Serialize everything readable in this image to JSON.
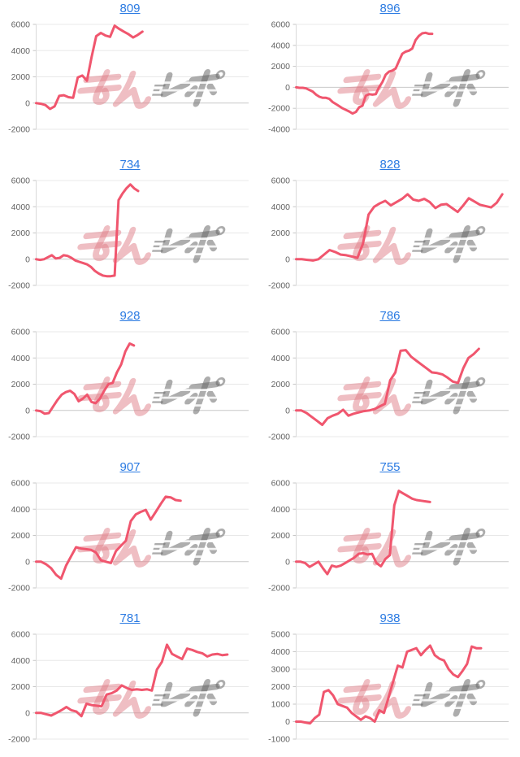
{
  "style": {
    "background": "#ffffff",
    "line_color": "#f0566e",
    "link_color": "#2a7ae2",
    "grid_color": "#e8e8e8",
    "zero_line_color": "#c9c9c9",
    "axis_color": "#dadada",
    "tick_color": "#c6c6c6",
    "tick_label_color": "#636363"
  },
  "watermark": {
    "text": "みんレポ",
    "pink_text": "みん",
    "gray_text": "レポ",
    "pink_color": "rgba(224,125,135,0.5)",
    "gray_color": "rgba(105,105,105,0.55)"
  },
  "chart_data": [
    {
      "type": "line",
      "title": "809",
      "ylim": [
        -2000,
        6000
      ],
      "yticks": [
        6000,
        4000,
        2000,
        0,
        -2000
      ],
      "coverage": 0.5,
      "values": [
        0,
        -50,
        -150,
        -450,
        -250,
        550,
        600,
        450,
        400,
        1950,
        2100,
        1700,
        3500,
        5100,
        5350,
        5150,
        5050,
        5900,
        5650,
        5450,
        5250,
        5000,
        5200,
        5450
      ]
    },
    {
      "type": "line",
      "title": "896",
      "ylim": [
        -4000,
        6000
      ],
      "yticks": [
        6000,
        4000,
        2000,
        0,
        -2000,
        -4000
      ],
      "coverage": 0.64,
      "values": [
        0,
        -50,
        -50,
        -100,
        -250,
        -400,
        -700,
        -900,
        -1000,
        -1000,
        -1100,
        -1400,
        -1600,
        -1800,
        -2000,
        -2150,
        -2300,
        -2500,
        -2350,
        -1900,
        -1750,
        -800,
        -650,
        -700,
        -650,
        0,
        500,
        1200,
        1500,
        1600,
        1800,
        2500,
        3200,
        3400,
        3500,
        3700,
        4500,
        4900,
        5150,
        5200,
        5100,
        5100
      ]
    },
    {
      "type": "line",
      "title": "734",
      "ylim": [
        -2000,
        6000
      ],
      "yticks": [
        6000,
        4000,
        2000,
        0,
        -2000
      ],
      "coverage": 0.48,
      "values": [
        0,
        -50,
        0,
        150,
        300,
        50,
        100,
        300,
        250,
        100,
        -100,
        -200,
        -300,
        -400,
        -600,
        -900,
        -1100,
        -1250,
        -1300,
        -1300,
        -1250,
        4500,
        5000,
        5400,
        5700,
        5400,
        5200
      ]
    },
    {
      "type": "line",
      "title": "828",
      "ylim": [
        -2000,
        6000
      ],
      "yticks": [
        6000,
        4000,
        2000,
        0,
        -2000
      ],
      "coverage": 0.97,
      "values": [
        0,
        0,
        -50,
        -100,
        0,
        350,
        700,
        550,
        350,
        300,
        200,
        100,
        1200,
        3400,
        4000,
        4250,
        4450,
        4100,
        4350,
        4600,
        4950,
        4550,
        4450,
        4600,
        4350,
        3900,
        4150,
        4200,
        3900,
        3600,
        4100,
        4650,
        4400,
        4150,
        4050,
        3950,
        4300,
        4950
      ]
    },
    {
      "type": "line",
      "title": "928",
      "ylim": [
        -2000,
        6000
      ],
      "yticks": [
        6000,
        4000,
        2000,
        0,
        -2000
      ],
      "coverage": 0.46,
      "values": [
        0,
        -50,
        -250,
        -200,
        300,
        800,
        1200,
        1400,
        1500,
        1250,
        700,
        900,
        1200,
        650,
        550,
        900,
        1500,
        2000,
        2100,
        2900,
        3500,
        4500,
        5100,
        4950
      ]
    },
    {
      "type": "line",
      "title": "786",
      "ylim": [
        -2000,
        6000
      ],
      "yticks": [
        6000,
        4000,
        2000,
        0,
        -2000
      ],
      "coverage": 0.86,
      "values": [
        0,
        0,
        -200,
        -500,
        -800,
        -1100,
        -600,
        -400,
        -250,
        50,
        -400,
        -250,
        -150,
        -50,
        0,
        100,
        300,
        500,
        2300,
        2900,
        4550,
        4600,
        4100,
        3800,
        3500,
        3200,
        2900,
        2850,
        2750,
        2500,
        2200,
        2100,
        3200,
        4000,
        4300,
        4700
      ]
    },
    {
      "type": "line",
      "title": "907",
      "ylim": [
        -2000,
        6000
      ],
      "yticks": [
        6000,
        4000,
        2000,
        0,
        -2000
      ],
      "coverage": 0.68,
      "values": [
        0,
        0,
        -200,
        -500,
        -1000,
        -1300,
        -300,
        400,
        1100,
        1000,
        950,
        900,
        700,
        100,
        0,
        -100,
        800,
        1200,
        1600,
        3100,
        3600,
        3800,
        3950,
        3200,
        3800,
        4400,
        4950,
        4900,
        4700,
        4650
      ]
    },
    {
      "type": "line",
      "title": "755",
      "ylim": [
        -2000,
        6000
      ],
      "yticks": [
        6000,
        4000,
        2000,
        0,
        -2000
      ],
      "coverage": 0.63,
      "values": [
        0,
        0,
        -100,
        -400,
        -200,
        0,
        -500,
        -950,
        -300,
        -400,
        -300,
        -100,
        100,
        300,
        600,
        650,
        550,
        600,
        -100,
        -350,
        200,
        500,
        4300,
        5400,
        5200,
        5000,
        4800,
        4700,
        4650,
        4600,
        4550
      ]
    },
    {
      "type": "line",
      "title": "781",
      "ylim": [
        -2000,
        6000
      ],
      "yticks": [
        6000,
        4000,
        2000,
        0,
        -2000
      ],
      "coverage": 0.9,
      "values": [
        0,
        0,
        -100,
        -200,
        0,
        200,
        450,
        200,
        100,
        -250,
        700,
        600,
        550,
        500,
        1400,
        1500,
        1700,
        2100,
        1900,
        1750,
        1800,
        1750,
        1800,
        1700,
        3300,
        3900,
        5200,
        4500,
        4300,
        4100,
        4900,
        4800,
        4650,
        4550,
        4300,
        4450,
        4500,
        4400,
        4450
      ]
    },
    {
      "type": "line",
      "title": "938",
      "ylim": [
        -1000,
        5000
      ],
      "yticks": [
        5000,
        4000,
        3000,
        2000,
        1000,
        0,
        -1000
      ],
      "coverage": 0.87,
      "values": [
        0,
        0,
        -50,
        -100,
        200,
        400,
        1700,
        1800,
        1500,
        1000,
        900,
        800,
        500,
        300,
        100,
        300,
        200,
        0,
        650,
        500,
        1400,
        2300,
        3200,
        3100,
        4000,
        4100,
        4200,
        3800,
        4100,
        4350,
        3800,
        3600,
        3500,
        3000,
        2700,
        2550,
        2900,
        3300,
        4300,
        4200,
        4200
      ]
    }
  ]
}
